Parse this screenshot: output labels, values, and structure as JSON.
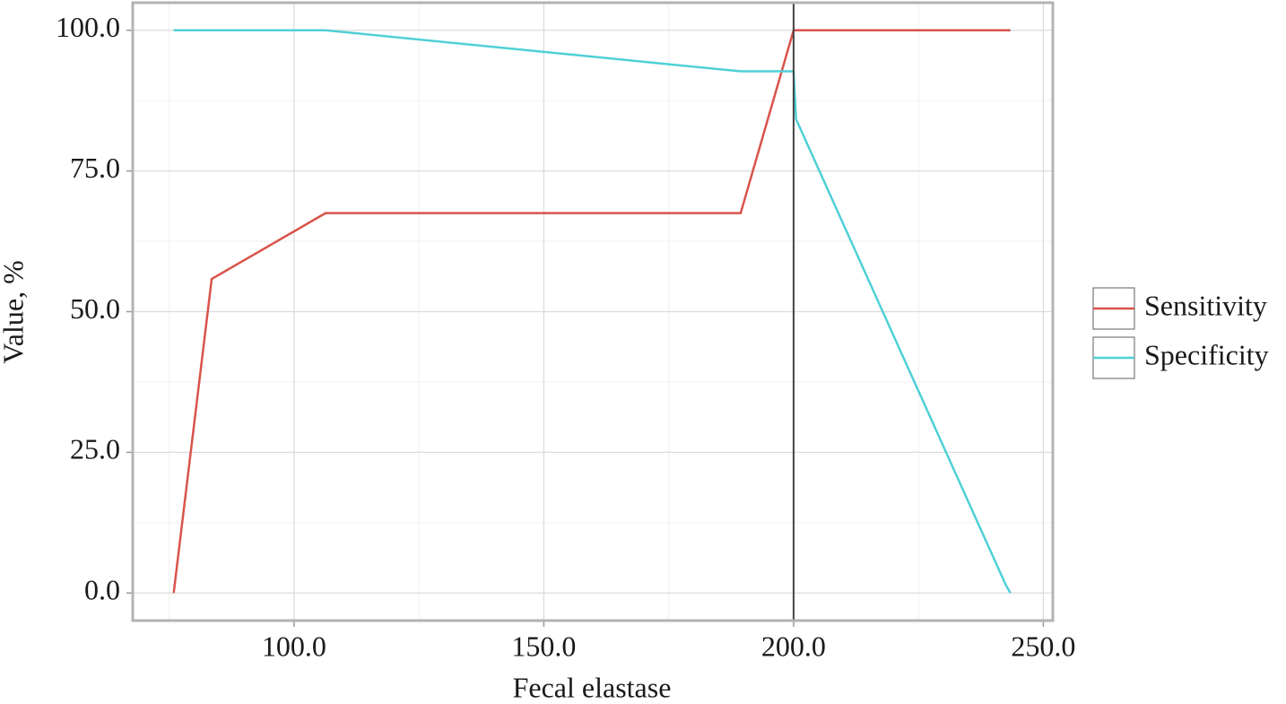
{
  "chart_data": {
    "type": "line",
    "x_label": "Fecal elastase",
    "y_label": "Value, %",
    "xlim": [
      67.7,
      251.9
    ],
    "ylim": [
      -4.9,
      104.9
    ],
    "xticks": [
      {
        "value": 100,
        "label": "100.0"
      },
      {
        "value": 150,
        "label": "150.0"
      },
      {
        "value": 200,
        "label": "200.0"
      },
      {
        "value": 250,
        "label": "250.0"
      }
    ],
    "yticks": [
      {
        "value": 0,
        "label": "0.0"
      },
      {
        "value": 25,
        "label": "25.0"
      },
      {
        "value": 50,
        "label": "50.0"
      },
      {
        "value": 75,
        "label": "75.0"
      },
      {
        "value": 100,
        "label": "100.0"
      }
    ],
    "grid": true,
    "vline": 200,
    "legend": "right",
    "series": [
      {
        "name": "Sensitivity",
        "color": "#d9534a",
        "x": [
          75.9,
          83.1,
          83.5,
          106.3,
          189.4,
          200.0,
          243.4
        ],
        "values": [
          0,
          52.8,
          55.8,
          67.5,
          67.5,
          100,
          100
        ]
      },
      {
        "name": "Specificity",
        "color": "#4fd0d6",
        "x": [
          75.9,
          106.3,
          189.4,
          200.0,
          200.5,
          242.5,
          243.4
        ],
        "values": [
          100,
          100,
          92.7,
          92.7,
          84.2,
          1.4,
          0
        ]
      }
    ]
  }
}
